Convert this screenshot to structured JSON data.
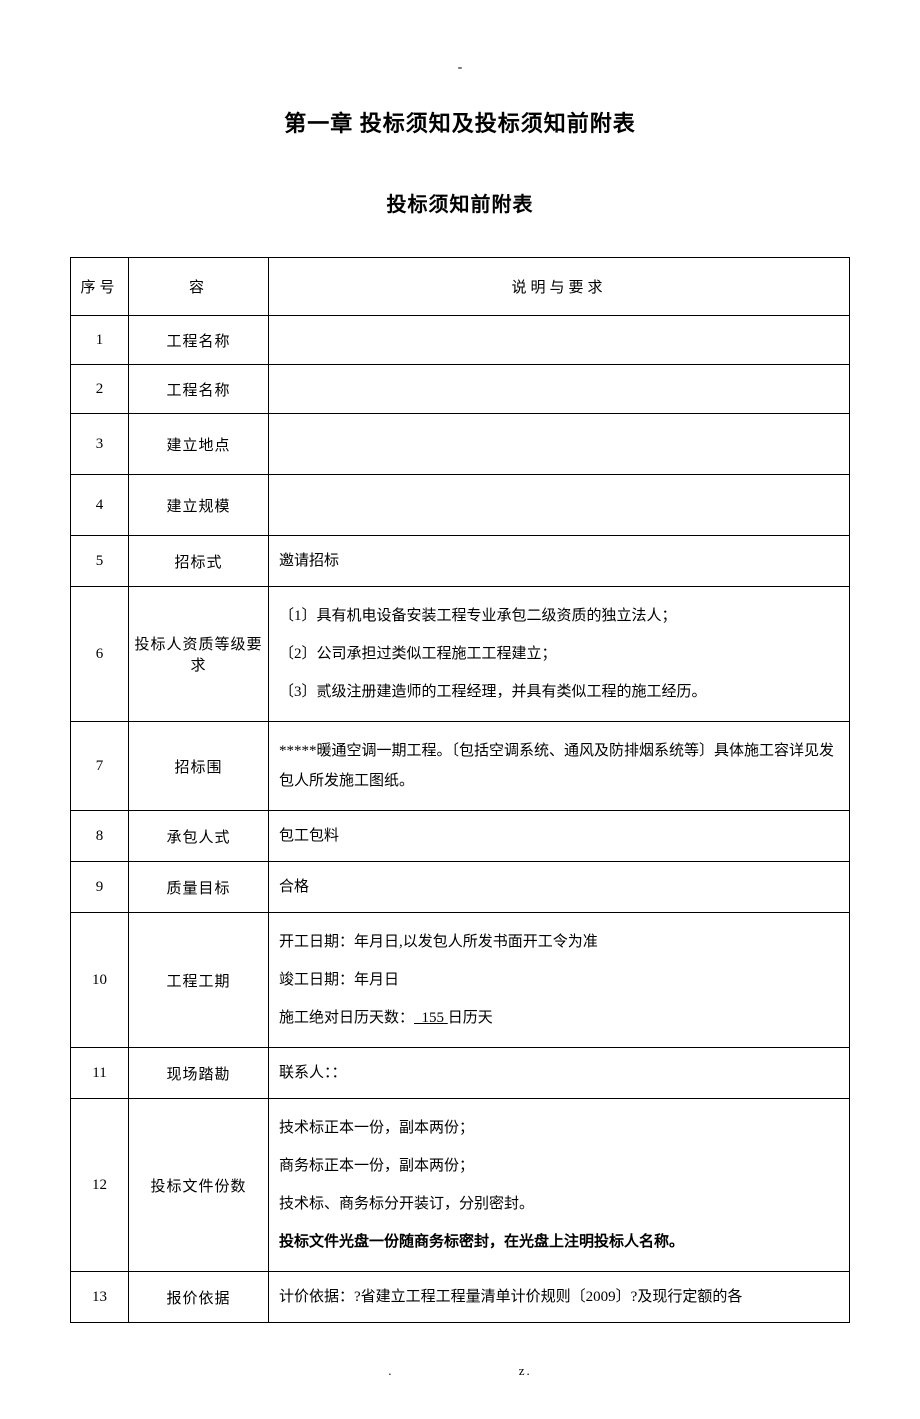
{
  "top_dash": "-",
  "chapter_title": "第一章 投标须知及投标须知前附表",
  "section_title": "投标须知前附表",
  "header": {
    "seq": "序号",
    "content": "容",
    "desc": "说明与要求"
  },
  "rows": [
    {
      "seq": "1",
      "content": "工程名称",
      "desc": ""
    },
    {
      "seq": "2",
      "content": "工程名称",
      "desc": ""
    },
    {
      "seq": "3",
      "content": "建立地点",
      "desc": ""
    },
    {
      "seq": "4",
      "content": "建立规模",
      "desc": ""
    },
    {
      "seq": "5",
      "content": "招标式",
      "desc": "邀请招标"
    },
    {
      "seq": "6",
      "content": "投标人资质等级要求",
      "desc_lines": [
        "〔1〕具有机电设备安装工程专业承包二级资质的独立法人；",
        "〔2〕公司承担过类似工程施工工程建立；",
        "〔3〕贰级注册建造师的工程经理，并具有类似工程的施工经历。"
      ]
    },
    {
      "seq": "7",
      "content": "招标围",
      "desc_lines": [
        "*****暖通空调一期工程。〔包括空调系统、通风及防排烟系统等〕具体施工容详见发包人所发施工图纸。"
      ]
    },
    {
      "seq": "8",
      "content": "承包人式",
      "desc": "包工包料"
    },
    {
      "seq": "9",
      "content": "质量目标",
      "desc": "合格"
    },
    {
      "seq": "10",
      "content": "工程工期",
      "desc_lines": [
        "开工日期：年月日,以发包人所发书面开工令为准",
        "竣工日期：年月日",
        "施工绝对日历天数：  155 日历天"
      ],
      "underline_index": 2,
      "underline_text": "  155 "
    },
    {
      "seq": "11",
      "content": "现场踏勘",
      "desc": "联系人：："
    },
    {
      "seq": "12",
      "content": "投标文件份数",
      "desc_lines": [
        "技术标正本一份，副本两份；",
        "商务标正本一份，副本两份；",
        "技术标、商务标分开装订，分别密封。",
        "投标文件光盘一份随商务标密封，在光盘上注明投标人名称。"
      ],
      "bold_index": 3
    },
    {
      "seq": "13",
      "content": "报价依据",
      "desc": "计价依据：?省建立工程工程量清单计价规则〔2009〕?及现行定额的各"
    }
  ],
  "footer": {
    "left": ".",
    "right": "z."
  }
}
